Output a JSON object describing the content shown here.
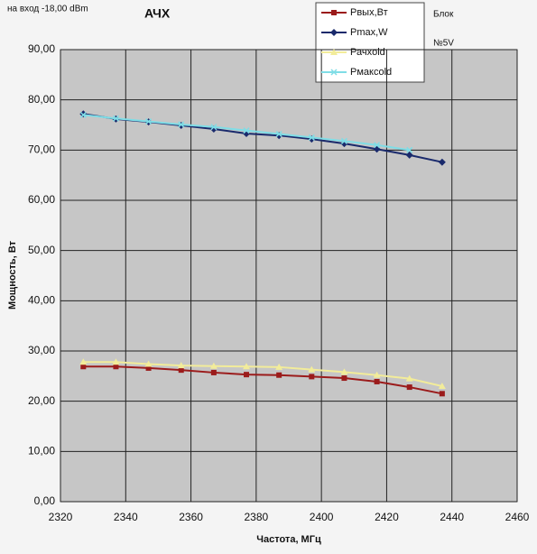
{
  "chart_data": {
    "type": "line",
    "title": "АЧХ",
    "annotations": [
      "на вход -18,00 dBm",
      "Блок",
      "№5V"
    ],
    "xlabel": "Частота, МГц",
    "ylabel": "Мощность, Вт",
    "x": [
      2327,
      2337,
      2347,
      2357,
      2367,
      2377,
      2387,
      2397,
      2407,
      2417,
      2427,
      2437
    ],
    "series": [
      {
        "name": "Рвых,Вт",
        "color": "#9b1b1b",
        "marker": "square",
        "values": [
          26.9,
          26.9,
          26.6,
          26.2,
          25.7,
          25.3,
          25.2,
          24.9,
          24.6,
          23.9,
          22.8,
          21.5
        ]
      },
      {
        "name": "Pmax,W",
        "color": "#1a2a6c",
        "marker": "diamond",
        "values": [
          77.2,
          76.2,
          75.6,
          74.9,
          74.2,
          73.3,
          72.9,
          72.2,
          71.3,
          70.2,
          69.0,
          67.6
        ]
      },
      {
        "name": "Рачхold",
        "color": "#f2ec9a",
        "marker": "triangle",
        "values": [
          27.8,
          27.8,
          27.4,
          27.1,
          27.0,
          26.9,
          26.8,
          26.3,
          25.8,
          25.2,
          24.5,
          23.0
        ]
      },
      {
        "name": "Рмаксold",
        "color": "#7fdde6",
        "marker": "x",
        "values": [
          77.0,
          76.3,
          75.7,
          75.1,
          74.6,
          73.9,
          73.2,
          72.5,
          71.8,
          71.0,
          70.0,
          null
        ]
      }
    ],
    "xlim": [
      2320,
      2460
    ],
    "xticks": [
      2320,
      2340,
      2360,
      2380,
      2400,
      2420,
      2440,
      2460
    ],
    "ylim": [
      0,
      90
    ],
    "yticks": [
      {
        "value": 0,
        "label": "0,00"
      },
      {
        "value": 10,
        "label": "10,00"
      },
      {
        "value": 20,
        "label": "20,00"
      },
      {
        "value": 30,
        "label": "30,00"
      },
      {
        "value": 40,
        "label": "40,00"
      },
      {
        "value": 50,
        "label": "50,00"
      },
      {
        "value": 60,
        "label": "60,00"
      },
      {
        "value": 70,
        "label": "70,00"
      },
      {
        "value": 80,
        "label": "80,00"
      },
      {
        "value": 90,
        "label": "90,00"
      }
    ],
    "grid": true,
    "legend": "top-right"
  }
}
